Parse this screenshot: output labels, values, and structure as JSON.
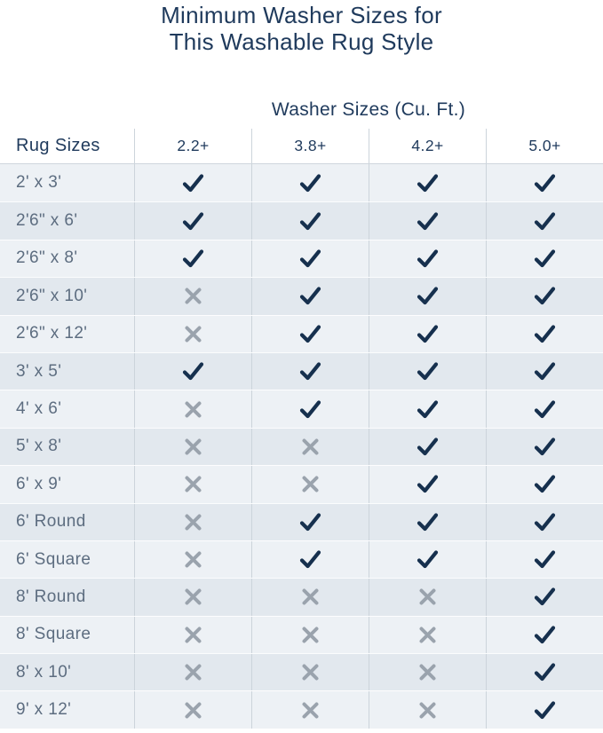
{
  "chart_data": {
    "type": "table",
    "title_lines": [
      "Minimum Washer Sizes for",
      "This Washable Rug Style"
    ],
    "group_header": "Washer Sizes (Cu. Ft.)",
    "row_header": "Rug Sizes",
    "washer_columns": [
      "2.2+",
      "3.8+",
      "4.2+",
      "5.0+"
    ],
    "rows": [
      {
        "label": "2' x 3'",
        "fits": [
          true,
          true,
          true,
          true
        ]
      },
      {
        "label": "2'6\" x 6'",
        "fits": [
          true,
          true,
          true,
          true
        ]
      },
      {
        "label": "2'6\" x 8'",
        "fits": [
          true,
          true,
          true,
          true
        ]
      },
      {
        "label": "2'6\" x 10'",
        "fits": [
          false,
          true,
          true,
          true
        ]
      },
      {
        "label": "2'6\" x 12'",
        "fits": [
          false,
          true,
          true,
          true
        ]
      },
      {
        "label": "3' x 5'",
        "fits": [
          true,
          true,
          true,
          true
        ]
      },
      {
        "label": "4' x 6'",
        "fits": [
          false,
          true,
          true,
          true
        ]
      },
      {
        "label": "5' x 8'",
        "fits": [
          false,
          false,
          true,
          true
        ]
      },
      {
        "label": "6' x 9'",
        "fits": [
          false,
          false,
          true,
          true
        ]
      },
      {
        "label": "6' Round",
        "fits": [
          false,
          true,
          true,
          true
        ]
      },
      {
        "label": "6' Square",
        "fits": [
          false,
          true,
          true,
          true
        ]
      },
      {
        "label": "8' Round",
        "fits": [
          false,
          false,
          false,
          true
        ]
      },
      {
        "label": "8' Square",
        "fits": [
          false,
          false,
          false,
          true
        ]
      },
      {
        "label": "8' x 10'",
        "fits": [
          false,
          false,
          false,
          true
        ]
      },
      {
        "label": "9' x 12'",
        "fits": [
          false,
          false,
          false,
          true
        ]
      }
    ]
  },
  "colors": {
    "navy": "#1f3a5c",
    "check": "#16304e",
    "cross": "#9aa3ad",
    "row_light": "#edf1f5",
    "row_dark": "#e2e8ee",
    "divider": "#ccd4db",
    "label": "#5d6d80"
  }
}
